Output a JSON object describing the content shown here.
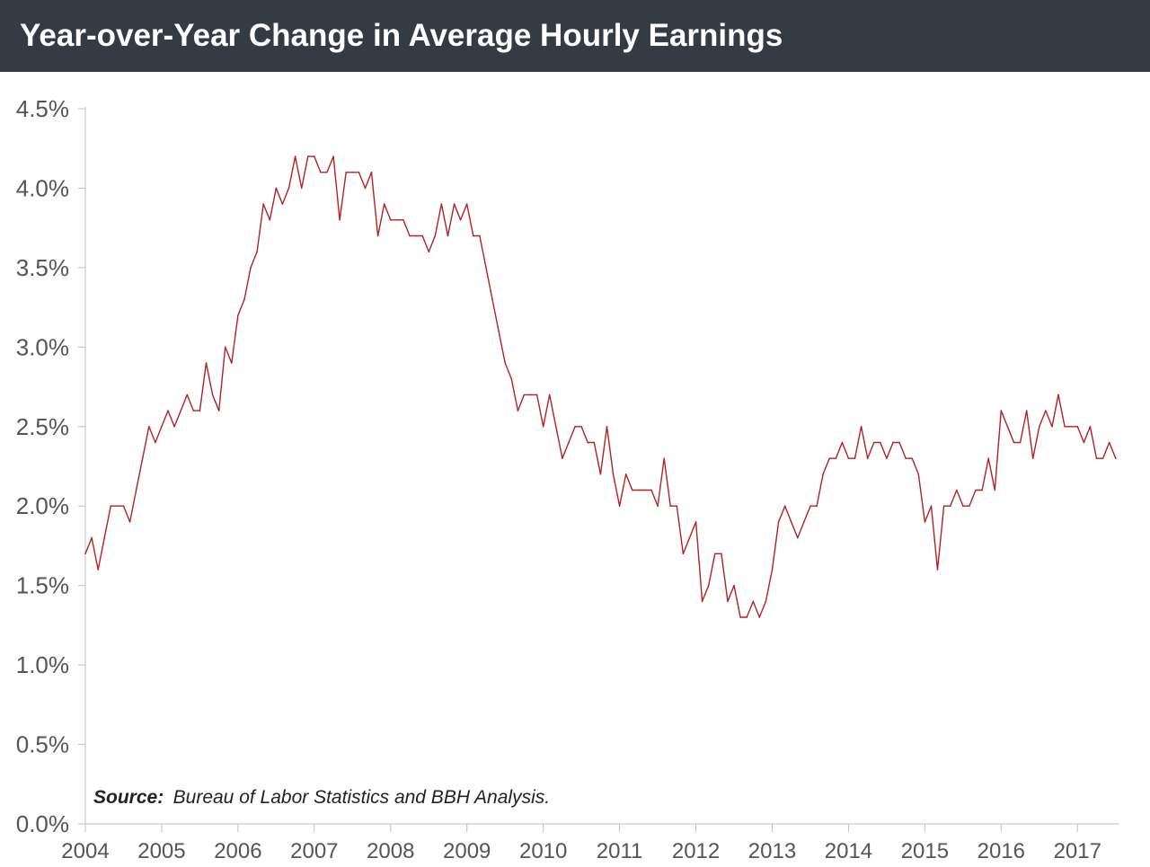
{
  "header": {
    "title": "Year-over-Year Change in Average Hourly Earnings"
  },
  "source": {
    "label": "Source:",
    "text": "Bureau of Labor Statistics and BBH Analysis."
  },
  "colors": {
    "title_bg": "#353b42",
    "title_fg": "#ffffff",
    "line": "#b22222",
    "axis": "#bfbfbf",
    "tick_text": "#555555"
  },
  "chart_data": {
    "type": "line",
    "title": "Year-over-Year Change in Average Hourly Earnings",
    "xlabel": "",
    "ylabel": "",
    "ylim": [
      0,
      4.5
    ],
    "xlim": [
      2004,
      2017.55
    ],
    "yticks": [
      0,
      0.5,
      1.0,
      1.5,
      2.0,
      2.5,
      3.0,
      3.5,
      4.0,
      4.5
    ],
    "ytick_labels": [
      "0.0%",
      "0.5%",
      "1.0%",
      "1.5%",
      "2.0%",
      "2.5%",
      "3.0%",
      "3.5%",
      "4.0%",
      "4.5%"
    ],
    "xtick_labels": [
      "2004",
      "2005",
      "2006",
      "2007",
      "2008",
      "2009",
      "2010",
      "2011",
      "2012",
      "2013",
      "2014",
      "2015",
      "2016",
      "2017"
    ],
    "series": [
      {
        "name": "Average Hourly Earnings YoY %",
        "start": "2004-01",
        "frequency": "monthly",
        "values": [
          1.7,
          1.8,
          1.6,
          1.8,
          2.0,
          2.0,
          2.0,
          1.9,
          2.1,
          2.3,
          2.5,
          2.4,
          2.5,
          2.6,
          2.5,
          2.6,
          2.7,
          2.6,
          2.6,
          2.9,
          2.7,
          2.6,
          3.0,
          2.9,
          3.2,
          3.3,
          3.5,
          3.6,
          3.9,
          3.8,
          4.0,
          3.9,
          4.0,
          4.2,
          4.0,
          4.2,
          4.2,
          4.1,
          4.1,
          4.2,
          3.8,
          4.1,
          4.1,
          4.1,
          4.0,
          4.1,
          3.7,
          3.9,
          3.8,
          3.8,
          3.8,
          3.7,
          3.7,
          3.7,
          3.6,
          3.7,
          3.9,
          3.7,
          3.9,
          3.8,
          3.9,
          3.7,
          3.7,
          3.5,
          3.3,
          3.1,
          2.9,
          2.8,
          2.6,
          2.7,
          2.7,
          2.7,
          2.5,
          2.7,
          2.5,
          2.3,
          2.4,
          2.5,
          2.5,
          2.4,
          2.4,
          2.2,
          2.5,
          2.2,
          2.0,
          2.2,
          2.1,
          2.1,
          2.1,
          2.1,
          2.0,
          2.3,
          2.0,
          2.0,
          1.7,
          1.8,
          1.9,
          1.4,
          1.5,
          1.7,
          1.7,
          1.4,
          1.5,
          1.3,
          1.3,
          1.4,
          1.3,
          1.4,
          1.6,
          1.9,
          2.0,
          1.9,
          1.8,
          1.9,
          2.0,
          2.0,
          2.2,
          2.3,
          2.3,
          2.4,
          2.3,
          2.3,
          2.5,
          2.3,
          2.4,
          2.4,
          2.3,
          2.4,
          2.4,
          2.3,
          2.3,
          2.2,
          1.9,
          2.0,
          1.6,
          2.0,
          2.0,
          2.1,
          2.0,
          2.0,
          2.1,
          2.1,
          2.3,
          2.1,
          2.6,
          2.5,
          2.4,
          2.4,
          2.6,
          2.3,
          2.5,
          2.6,
          2.5,
          2.7,
          2.5,
          2.5,
          2.5,
          2.4,
          2.5,
          2.3,
          2.3,
          2.4,
          2.3
        ]
      }
    ]
  }
}
